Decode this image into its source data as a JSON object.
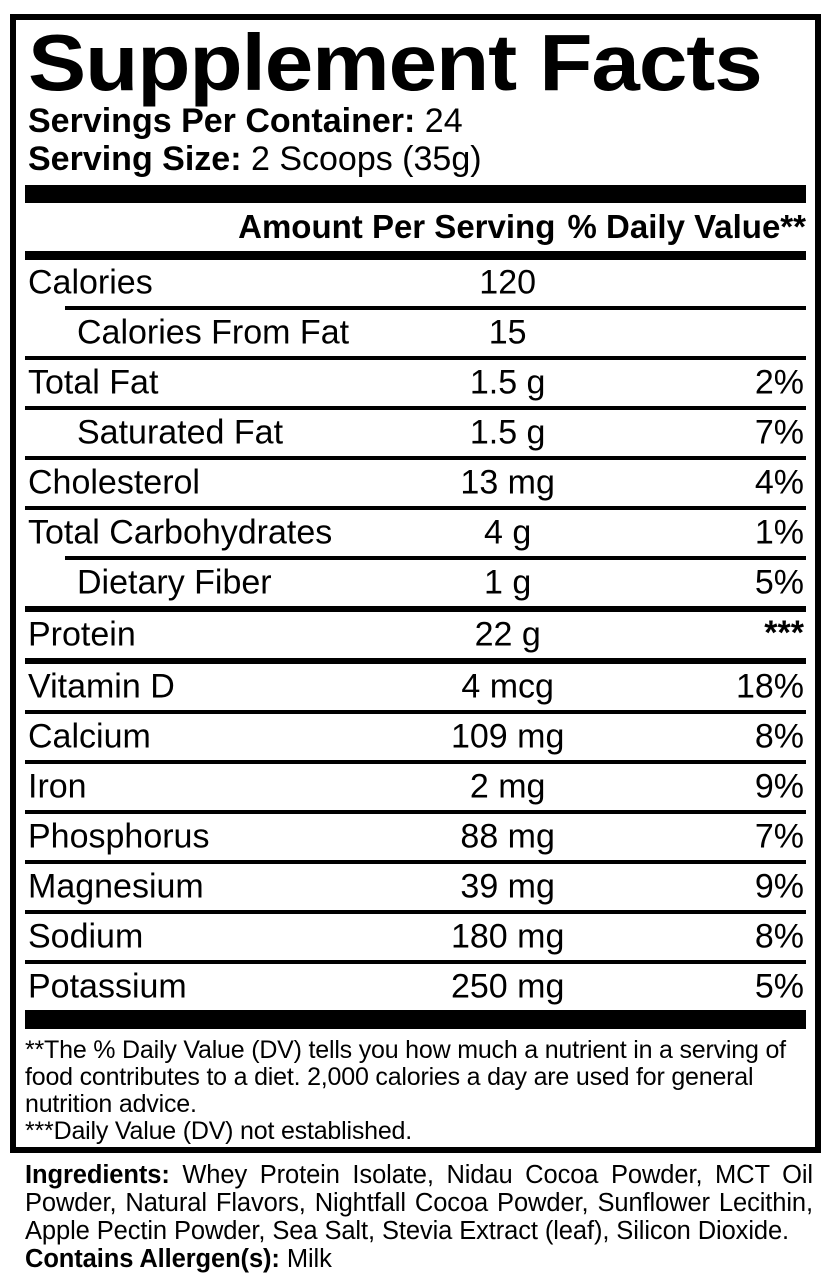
{
  "title": "Supplement Facts",
  "servings": {
    "label": "Servings Per Container:",
    "value": "24"
  },
  "serving_size": {
    "label": "Serving Size:",
    "value": "2 Scoops (35g)"
  },
  "table": {
    "col_amount": "Amount Per Serving",
    "col_dv": "% Daily Value**",
    "rows": [
      {
        "name": "Calories",
        "amount": "120",
        "dv": ""
      },
      {
        "name": "Calories From Fat",
        "amount": "15",
        "dv": ""
      },
      {
        "name": "Total Fat",
        "amount": "1.5 g",
        "dv": "2%"
      },
      {
        "name": "Saturated Fat",
        "amount": "1.5 g",
        "dv": "7%"
      },
      {
        "name": "Cholesterol",
        "amount": "13 mg",
        "dv": "4%"
      },
      {
        "name": "Total Carbohydrates",
        "amount": "4 g",
        "dv": "1%"
      },
      {
        "name": "Dietary Fiber",
        "amount": "1 g",
        "dv": "5%"
      },
      {
        "name": "Protein",
        "amount": "22 g",
        "dv": "***"
      },
      {
        "name": "Vitamin D",
        "amount": "4 mcg",
        "dv": "18%"
      },
      {
        "name": "Calcium",
        "amount": "109 mg",
        "dv": "8%"
      },
      {
        "name": "Iron",
        "amount": "2 mg",
        "dv": "9%"
      },
      {
        "name": "Phosphorus",
        "amount": "88 mg",
        "dv": "7%"
      },
      {
        "name": "Magnesium",
        "amount": "39 mg",
        "dv": "9%"
      },
      {
        "name": "Sodium",
        "amount": "180 mg",
        "dv": "8%"
      },
      {
        "name": "Potassium",
        "amount": "250 mg",
        "dv": "5%"
      }
    ]
  },
  "footnotes": {
    "dv_note": "**The % Daily Value (DV) tells you how much a nutrient in a serving of food contributes to a diet. 2,000 calories a day are used for general nutrition advice.",
    "not_established_note": "***Daily Value (DV) not established."
  },
  "ingredients": {
    "label": "Ingredients:",
    "text": "Whey Protein Isolate, Nidau Cocoa Powder, MCT Oil Powder, Natural Flavors, Nightfall Cocoa Powder, Sunflower Lecithin, Apple Pectin Powder, Sea Salt, Stevia Extract (leaf), Silicon Dioxide.",
    "allergen_label": "Contains Allergen(s):",
    "allergen_value": "Milk"
  },
  "colors": {
    "ink": "#000000",
    "background": "#ffffff"
  }
}
